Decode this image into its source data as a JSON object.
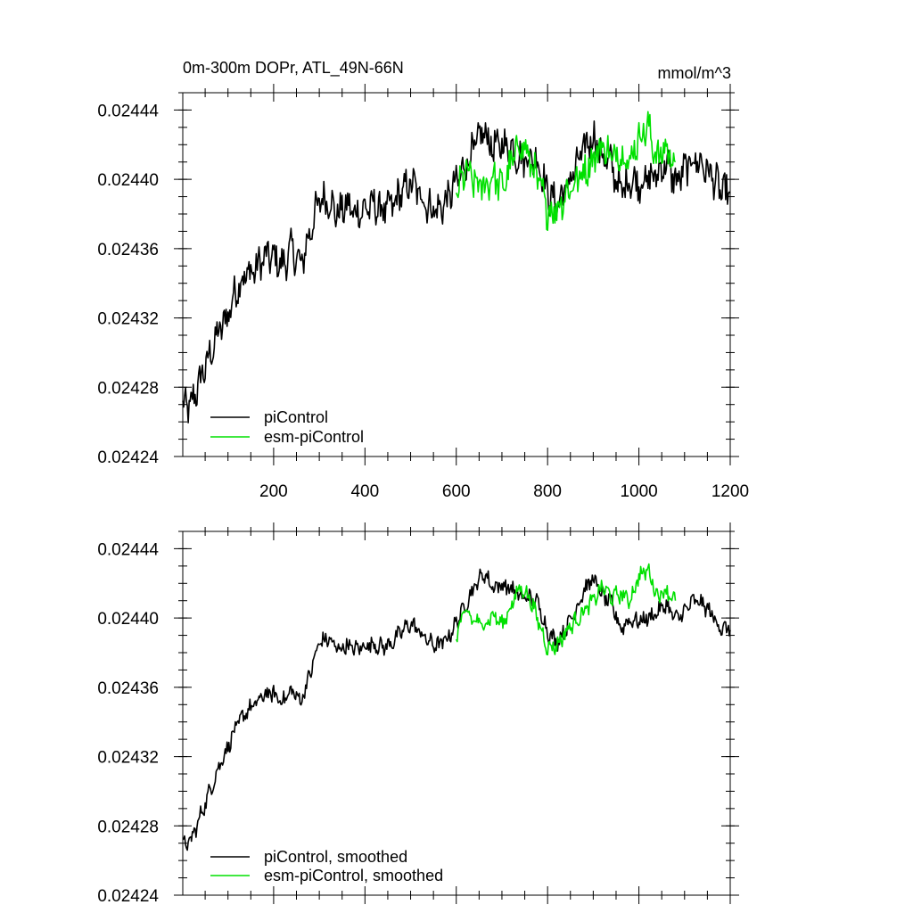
{
  "units_label": "mmol/m^3",
  "colors": {
    "piControl": "#000000",
    "esm-piControl": "#00e000"
  },
  "chart_data": [
    {
      "type": "line",
      "title": "0m-300m DOPr, ATL_49N-66N",
      "ylabel": "mmol/m^3",
      "xlim": [
        1,
        1200
      ],
      "ylim": [
        0.02424,
        0.02445
      ],
      "yticks": [
        "0.02424",
        "0.02428",
        "0.02432",
        "0.02436",
        "0.02440",
        "0.02444"
      ],
      "xticks": [
        "200",
        "400",
        "600",
        "800",
        "1000",
        "1200"
      ],
      "legend": [
        "piControl",
        "esm-piControl"
      ],
      "series": [
        {
          "name": "piControl",
          "color": "#000000",
          "x": [
            1,
            20,
            40,
            60,
            80,
            100,
            120,
            140,
            160,
            180,
            200,
            220,
            240,
            260,
            280,
            300,
            320,
            340,
            360,
            380,
            400,
            420,
            440,
            460,
            480,
            500,
            520,
            540,
            560,
            580,
            600,
            620,
            640,
            660,
            680,
            700,
            720,
            740,
            760,
            780,
            800,
            820,
            840,
            860,
            880,
            900,
            920,
            940,
            960,
            980,
            1000,
            1020,
            1040,
            1060,
            1080,
            1100,
            1120,
            1140,
            1160,
            1180,
            1200
          ],
          "y": [
            0.024268,
            0.02427,
            0.024285,
            0.024298,
            0.024312,
            0.024322,
            0.024338,
            0.024345,
            0.024348,
            0.024355,
            0.024355,
            0.02435,
            0.02436,
            0.02435,
            0.02437,
            0.024388,
            0.024388,
            0.02438,
            0.024385,
            0.02438,
            0.024383,
            0.024385,
            0.024382,
            0.024385,
            0.024392,
            0.024398,
            0.024392,
            0.024384,
            0.024382,
            0.024388,
            0.024398,
            0.024408,
            0.024418,
            0.024428,
            0.024418,
            0.02442,
            0.024418,
            0.024412,
            0.024413,
            0.02441,
            0.024392,
            0.024385,
            0.024395,
            0.024405,
            0.024418,
            0.024425,
            0.024413,
            0.024408,
            0.024393,
            0.0244,
            0.024398,
            0.0244,
            0.024403,
            0.02441,
            0.024398,
            0.024405,
            0.024412,
            0.024408,
            0.024402,
            0.024393,
            0.024392
          ]
        },
        {
          "name": "esm-piControl",
          "color": "#00e000",
          "x": [
            600,
            620,
            640,
            660,
            680,
            700,
            720,
            740,
            760,
            780,
            800,
            820,
            840,
            860,
            880,
            900,
            920,
            940,
            960,
            980,
            1000,
            1020,
            1040,
            1060,
            1080
          ],
          "y": [
            0.02439,
            0.024405,
            0.024398,
            0.024395,
            0.024402,
            0.024395,
            0.024408,
            0.024422,
            0.024412,
            0.024398,
            0.024382,
            0.024383,
            0.024392,
            0.024398,
            0.024405,
            0.024412,
            0.02442,
            0.024412,
            0.024416,
            0.02441,
            0.024425,
            0.02443,
            0.024412,
            0.024418,
            0.02441
          ]
        }
      ]
    },
    {
      "type": "line",
      "title": "",
      "xlim": [
        1,
        1200
      ],
      "ylim": [
        0.02424,
        0.02445
      ],
      "yticks": [
        "0.02424",
        "0.02428",
        "0.02432",
        "0.02436",
        "0.02440",
        "0.02444"
      ],
      "legend": [
        "piControl, smoothed",
        "esm-piControl, smoothed"
      ],
      "series": [
        {
          "name": "piControl, smoothed",
          "color": "#000000",
          "x": [
            1,
            20,
            40,
            60,
            80,
            100,
            120,
            140,
            160,
            180,
            200,
            220,
            240,
            260,
            280,
            300,
            320,
            340,
            360,
            380,
            400,
            420,
            440,
            460,
            480,
            500,
            520,
            540,
            560,
            580,
            600,
            620,
            640,
            660,
            680,
            700,
            720,
            740,
            760,
            780,
            800,
            820,
            840,
            860,
            880,
            900,
            920,
            940,
            960,
            980,
            1000,
            1020,
            1040,
            1060,
            1080,
            1100,
            1120,
            1140,
            1160,
            1180,
            1200
          ],
          "y": [
            0.024268,
            0.024272,
            0.024286,
            0.0243,
            0.024314,
            0.024326,
            0.024338,
            0.024346,
            0.02435,
            0.024356,
            0.024356,
            0.024352,
            0.024358,
            0.024352,
            0.024368,
            0.024386,
            0.024388,
            0.024382,
            0.024384,
            0.024382,
            0.024384,
            0.024385,
            0.024383,
            0.024386,
            0.024392,
            0.024397,
            0.024392,
            0.024386,
            0.024384,
            0.024388,
            0.024397,
            0.024408,
            0.024418,
            0.024426,
            0.024418,
            0.024419,
            0.024417,
            0.024412,
            0.024412,
            0.024408,
            0.024392,
            0.024386,
            0.024394,
            0.024404,
            0.024416,
            0.024423,
            0.024413,
            0.024408,
            0.024394,
            0.024399,
            0.024398,
            0.0244,
            0.024403,
            0.024408,
            0.024399,
            0.024404,
            0.02441,
            0.024408,
            0.024402,
            0.024394,
            0.024393
          ]
        },
        {
          "name": "esm-piControl, smoothed",
          "color": "#00e000",
          "x": [
            600,
            620,
            640,
            660,
            680,
            700,
            720,
            740,
            760,
            780,
            800,
            820,
            840,
            860,
            880,
            900,
            920,
            940,
            960,
            980,
            1000,
            1020,
            1040,
            1060,
            1080
          ],
          "y": [
            0.02439,
            0.024404,
            0.024398,
            0.024396,
            0.024402,
            0.024396,
            0.024407,
            0.024418,
            0.024412,
            0.024398,
            0.024383,
            0.024384,
            0.024392,
            0.024398,
            0.024404,
            0.02441,
            0.024418,
            0.024412,
            0.024414,
            0.02441,
            0.024424,
            0.024428,
            0.024413,
            0.024416,
            0.02441
          ]
        }
      ]
    }
  ]
}
